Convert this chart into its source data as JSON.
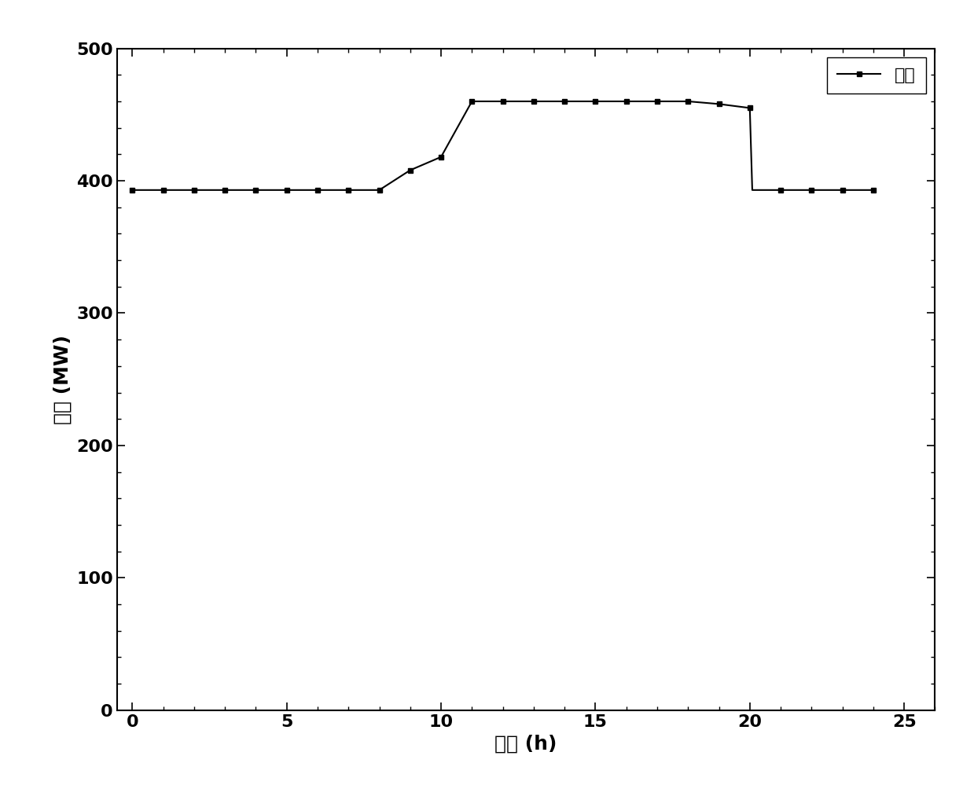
{
  "x": [
    0,
    1,
    2,
    3,
    4,
    5,
    6,
    7,
    8,
    9,
    10,
    11,
    12,
    13,
    14,
    15,
    16,
    17,
    18,
    19,
    20,
    20.08,
    21,
    22,
    23,
    24
  ],
  "y": [
    393,
    393,
    393,
    393,
    393,
    393,
    393,
    393,
    393,
    408,
    418,
    460,
    460,
    460,
    460,
    460,
    460,
    460,
    460,
    458,
    455,
    393,
    393,
    393,
    393,
    393
  ],
  "marker_x": [
    0,
    1,
    2,
    3,
    4,
    5,
    6,
    7,
    8,
    9,
    10,
    11,
    12,
    13,
    14,
    15,
    16,
    17,
    18,
    19,
    20,
    21,
    22,
    23,
    24
  ],
  "marker_y": [
    393,
    393,
    393,
    393,
    393,
    393,
    393,
    393,
    393,
    408,
    418,
    460,
    460,
    460,
    460,
    460,
    460,
    460,
    460,
    458,
    455,
    393,
    393,
    393,
    393
  ],
  "xlabel": "时间 (h)",
  "ylabel": "功率 (MW)",
  "legend_label": "功率",
  "line_color": "#000000",
  "marker_color": "#000000",
  "marker_style": "s",
  "marker_size": 4,
  "line_width": 1.5,
  "xlim": [
    -0.5,
    26
  ],
  "ylim": [
    0,
    500
  ],
  "xticks": [
    0,
    5,
    10,
    15,
    20,
    25
  ],
  "yticks": [
    0,
    100,
    200,
    300,
    400,
    500
  ],
  "xlabel_fontsize": 18,
  "ylabel_fontsize": 18,
  "tick_fontsize": 16,
  "legend_fontsize": 16,
  "background_color": "#ffffff"
}
